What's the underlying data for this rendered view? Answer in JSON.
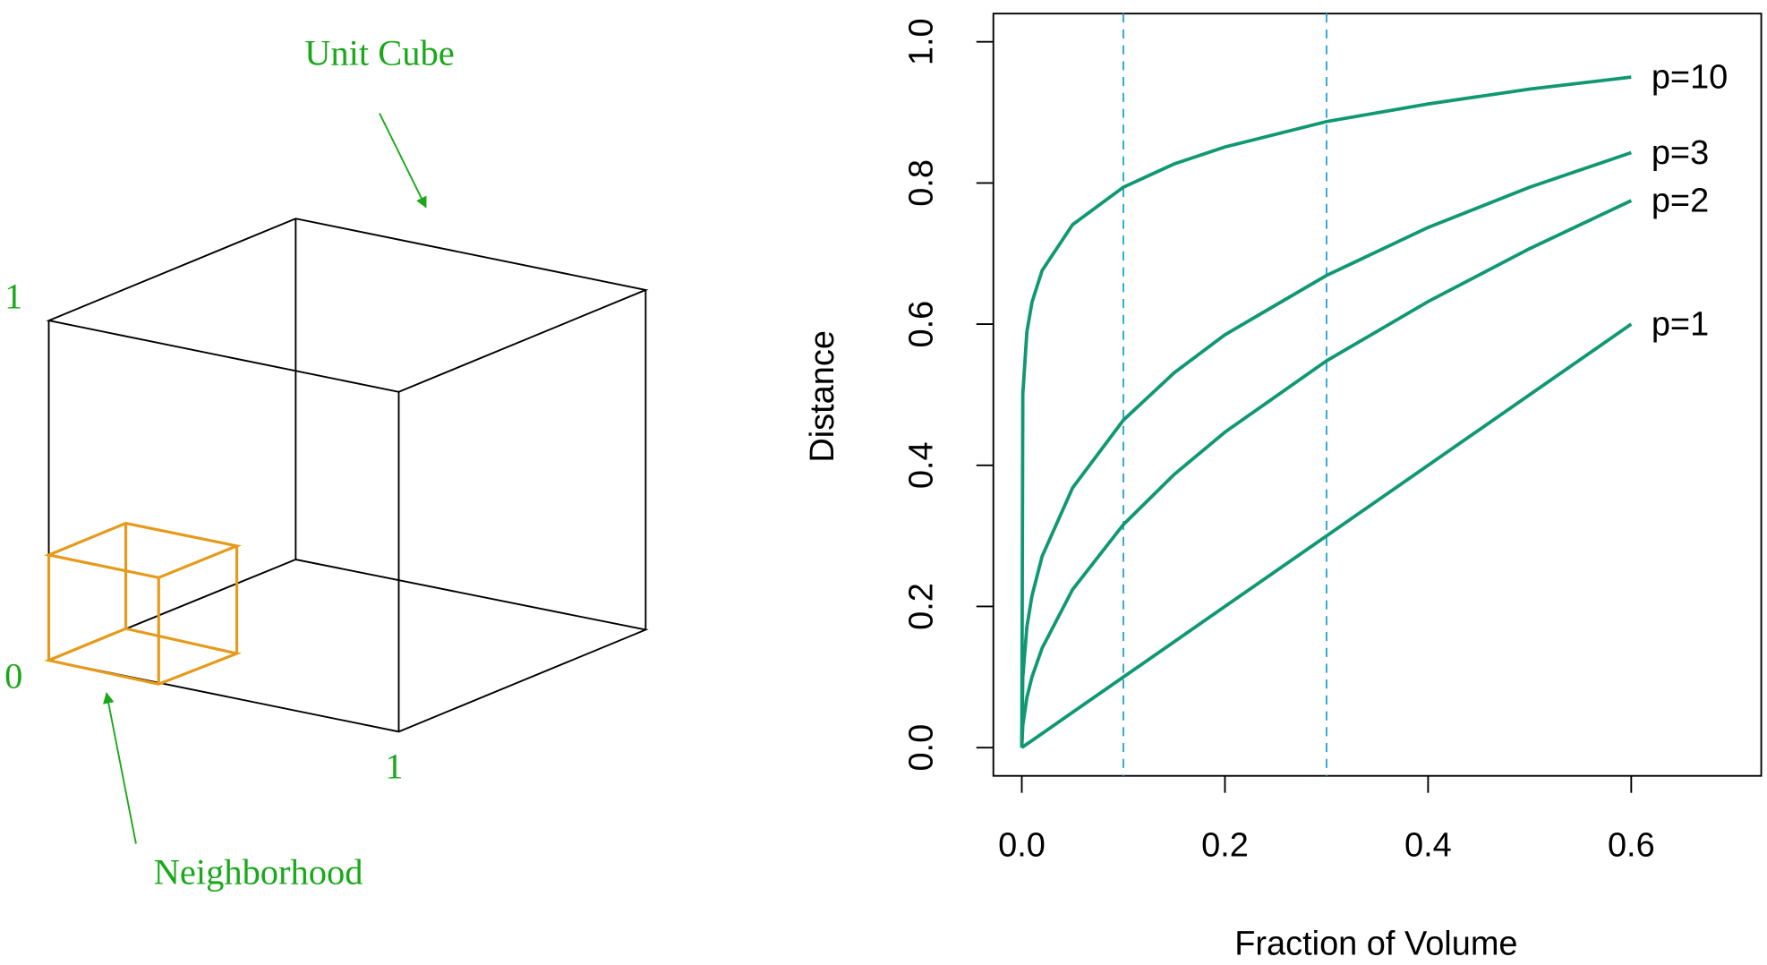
{
  "diagram": {
    "title": "Unit Cube",
    "axis_top": "1",
    "axis_origin": "0",
    "axis_right": "1",
    "neighborhood": "Neighborhood"
  },
  "chart_data": {
    "type": "line",
    "x_label": "Fraction of Volume",
    "y_label": "Distance",
    "x": [
      0,
      0.001,
      0.005,
      0.01,
      0.02,
      0.05,
      0.1,
      0.15,
      0.2,
      0.3,
      0.4,
      0.5,
      0.6
    ],
    "series": [
      {
        "name": "p=10",
        "color": "#109873",
        "values": [
          0,
          0.501,
          0.589,
          0.631,
          0.676,
          0.741,
          0.794,
          0.827,
          0.851,
          0.887,
          0.912,
          0.933,
          0.95
        ]
      },
      {
        "name": "p=3",
        "color": "#109873",
        "values": [
          0,
          0.1,
          0.171,
          0.215,
          0.271,
          0.368,
          0.464,
          0.531,
          0.585,
          0.669,
          0.737,
          0.794,
          0.843
        ]
      },
      {
        "name": "p=2",
        "color": "#109873",
        "values": [
          0,
          0.032,
          0.071,
          0.1,
          0.141,
          0.224,
          0.316,
          0.387,
          0.447,
          0.548,
          0.632,
          0.707,
          0.775
        ]
      },
      {
        "name": "p=1",
        "color": "#109873",
        "values": [
          0,
          0.001,
          0.005,
          0.01,
          0.02,
          0.05,
          0.1,
          0.15,
          0.2,
          0.3,
          0.4,
          0.5,
          0.6
        ]
      }
    ],
    "vlines": [
      0.1,
      0.3
    ],
    "vline_color": "#2aa7d6",
    "xlim": [
      -0.028,
      0.728
    ],
    "ylim": [
      -0.04,
      1.04
    ],
    "xticks": [
      {
        "value": 0,
        "label": "0.0"
      },
      0.2,
      0.4,
      0.6
    ],
    "yticks": [
      {
        "value": 0,
        "label": "0.0"
      },
      0.2,
      0.4,
      0.6,
      0.8,
      {
        "value": 1,
        "label": "1.0"
      }
    ]
  }
}
